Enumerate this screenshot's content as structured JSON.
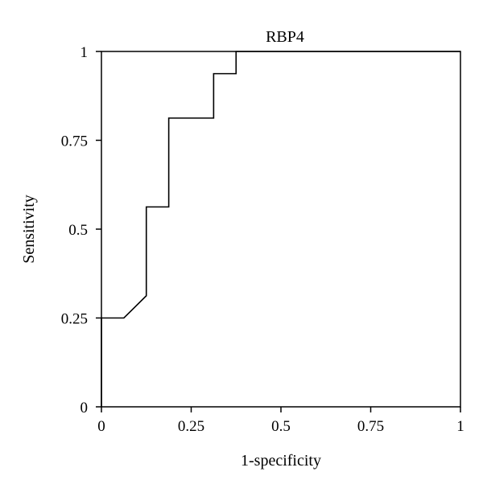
{
  "chart_data": {
    "type": "line",
    "title": "RBP4",
    "xlabel": "1-specificity",
    "ylabel": "Sensitivity",
    "xlim": [
      0,
      1
    ],
    "ylim": [
      0,
      1
    ],
    "x_ticks": [
      0,
      0.25,
      0.5,
      0.75,
      1
    ],
    "x_tick_labels": [
      "0",
      "0.25",
      "0.5",
      "0.75",
      "1"
    ],
    "y_ticks": [
      0,
      0.25,
      0.5,
      0.75,
      1
    ],
    "y_tick_labels": [
      "0",
      "0.25",
      "0.5",
      "0.75",
      "1"
    ],
    "grid": false,
    "series": [
      {
        "color": "#000000",
        "x": [
          0,
          0,
          0.0625,
          0.125,
          0.125,
          0.1875,
          0.1875,
          0.3125,
          0.3125,
          0.375,
          0.375,
          1
        ],
        "y": [
          0,
          0.25,
          0.25,
          0.3125,
          0.5625,
          0.5625,
          0.8125,
          0.8125,
          0.9375,
          0.9375,
          1,
          1
        ]
      }
    ]
  }
}
